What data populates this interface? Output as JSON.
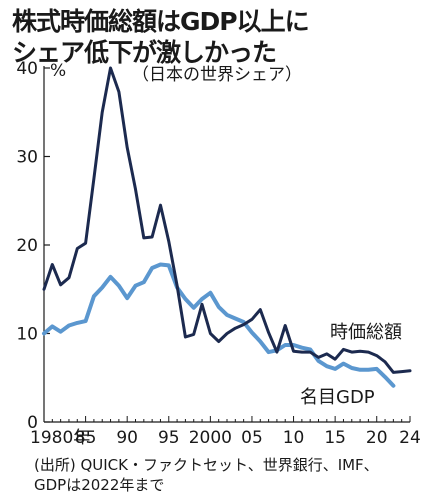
{
  "title_lines": [
    "株式時価総額はGDP以上に",
    "シェア低下が激しかった"
  ],
  "subtitle": "（日本の世界シェア）",
  "source_lines": [
    "(出所) QUICK・ファクトセット、世界銀行、IMF、",
    "GDPは2022年まで"
  ],
  "colors": {
    "market_cap": "#1c2a4f",
    "gdp": "#5b97cf",
    "axis": "#1a1a1a"
  },
  "chart_data": {
    "type": "line",
    "ylim": [
      0,
      40
    ],
    "yunit": "%",
    "xlim": [
      1980,
      2024
    ],
    "x_tick_values": [
      1980,
      1985,
      1990,
      1995,
      2000,
      2005,
      2010,
      2015,
      2020,
      2024
    ],
    "x_tick_labels": [
      "1980年",
      "85",
      "90",
      "95",
      "2000",
      "05",
      "10",
      "15",
      "20",
      "24"
    ],
    "y_ticks": [
      0,
      10,
      20,
      30,
      40
    ],
    "grid": false,
    "series": [
      {
        "name": "時価総額",
        "x": [
          1980,
          1981,
          1982,
          1983,
          1984,
          1985,
          1986,
          1987,
          1988,
          1989,
          1990,
          1991,
          1992,
          1993,
          1994,
          1995,
          1996,
          1997,
          1998,
          1999,
          2000,
          2001,
          2002,
          2003,
          2004,
          2005,
          2006,
          2007,
          2008,
          2009,
          2010,
          2011,
          2012,
          2013,
          2014,
          2015,
          2016,
          2017,
          2018,
          2019,
          2020,
          2021,
          2022,
          2023,
          2024
        ],
        "values": [
          15.0,
          17.8,
          15.5,
          16.3,
          19.6,
          20.2,
          27.5,
          35.0,
          40.0,
          37.3,
          31.0,
          26.3,
          20.8,
          20.9,
          24.5,
          20.4,
          15.4,
          9.6,
          9.9,
          13.3,
          10.0,
          9.1,
          10.0,
          10.6,
          11.0,
          11.6,
          12.7,
          10.1,
          7.9,
          10.9,
          8.0,
          7.9,
          7.9,
          7.3,
          7.7,
          7.1,
          8.2,
          7.9,
          8.0,
          7.9,
          7.5,
          6.8,
          5.6,
          5.7,
          5.8
        ]
      },
      {
        "name": "名目GDP",
        "x": [
          1980,
          1981,
          1982,
          1983,
          1984,
          1985,
          1986,
          1987,
          1988,
          1989,
          1990,
          1991,
          1992,
          1993,
          1994,
          1995,
          1996,
          1997,
          1998,
          1999,
          2000,
          2001,
          2002,
          2003,
          2004,
          2005,
          2006,
          2007,
          2008,
          2009,
          2010,
          2011,
          2012,
          2013,
          2014,
          2015,
          2016,
          2017,
          2018,
          2019,
          2020,
          2021,
          2022
        ],
        "values": [
          10.0,
          10.8,
          10.2,
          10.9,
          11.2,
          11.4,
          14.2,
          15.2,
          16.4,
          15.4,
          14.0,
          15.4,
          15.8,
          17.4,
          17.8,
          17.7,
          15.2,
          13.9,
          12.9,
          13.9,
          14.6,
          13.0,
          12.1,
          11.7,
          11.3,
          10.1,
          9.1,
          7.9,
          8.1,
          8.7,
          8.7,
          8.4,
          8.2,
          6.9,
          6.3,
          6.0,
          6.6,
          6.1,
          5.9,
          5.9,
          6.0,
          5.1,
          4.1
        ]
      }
    ],
    "annotations": [
      "時価総額",
      "名目GDP"
    ]
  }
}
